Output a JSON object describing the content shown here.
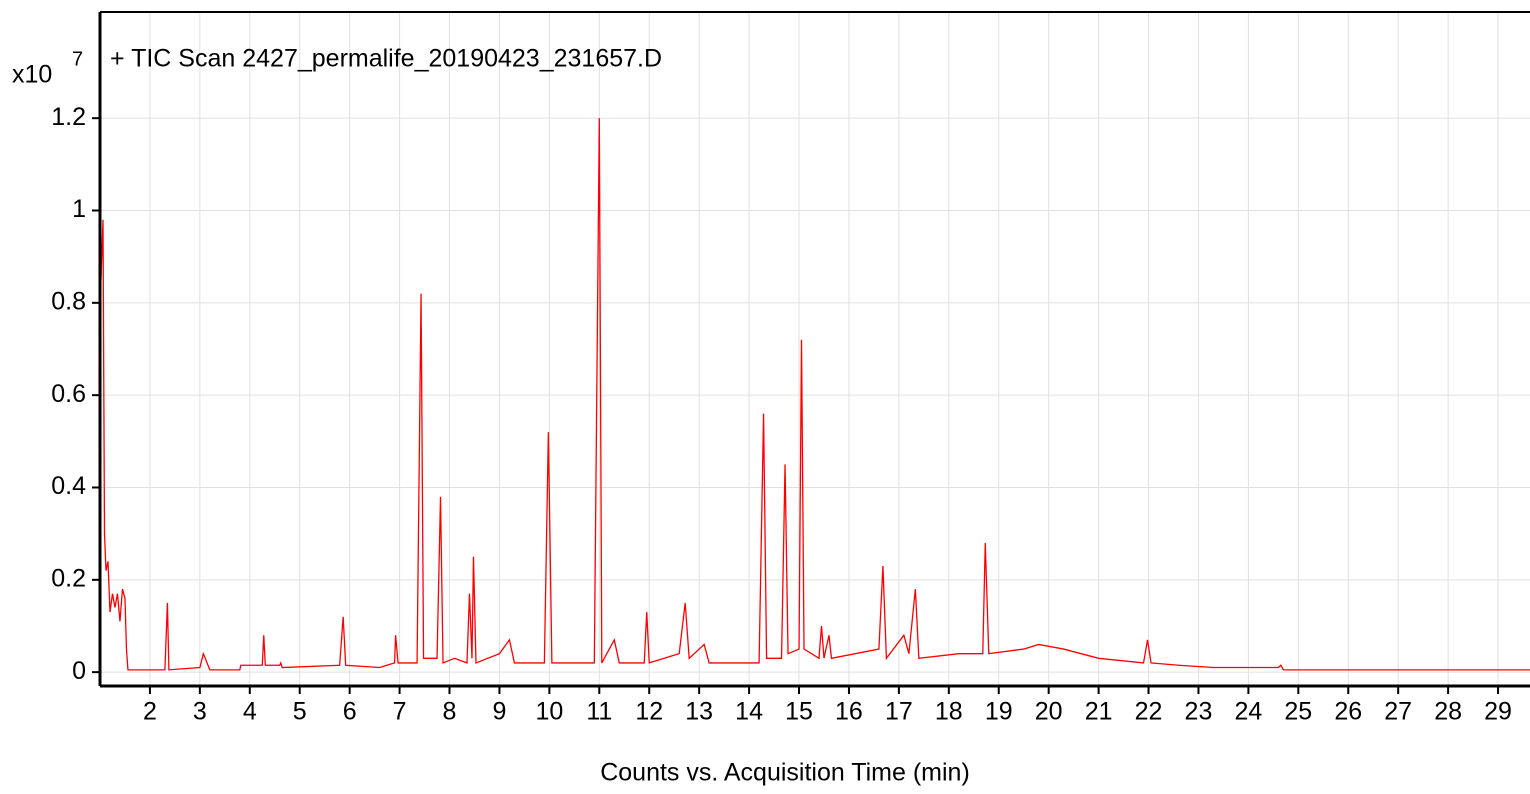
{
  "chart_data": {
    "type": "line",
    "title": "+ TIC Scan 2427_permalife_20190423_231657.D",
    "y_scale_label": "x10",
    "y_scale_exponent": "7",
    "xlabel": "Counts vs. Acquisition Time (min)",
    "xlim": [
      1.0,
      29.64
    ],
    "ylim": [
      -0.03,
      1.43
    ],
    "xticks": [
      2,
      3,
      4,
      5,
      6,
      7,
      8,
      9,
      10,
      11,
      12,
      13,
      14,
      15,
      16,
      17,
      18,
      19,
      20,
      21,
      22,
      23,
      24,
      25,
      26,
      27,
      28,
      29
    ],
    "yticks": [
      0,
      0.2,
      0.4,
      0.6,
      0.8,
      1,
      1.2
    ],
    "grid": true,
    "x": [
      1.02,
      1.06,
      1.09,
      1.12,
      1.16,
      1.2,
      1.25,
      1.3,
      1.35,
      1.4,
      1.45,
      1.5,
      1.53,
      1.56,
      2.3,
      2.35,
      2.38,
      3.0,
      3.07,
      3.2,
      3.8,
      3.82,
      4.25,
      4.28,
      4.31,
      4.6,
      4.62,
      4.65,
      5.8,
      5.87,
      5.92,
      6.6,
      6.9,
      6.92,
      6.97,
      7.35,
      7.43,
      7.48,
      7.75,
      7.82,
      7.87,
      8.1,
      8.35,
      8.4,
      8.45,
      8.48,
      8.53,
      9.0,
      9.2,
      9.3,
      9.9,
      9.98,
      10.05,
      10.9,
      11.0,
      11.05,
      11.3,
      11.4,
      11.9,
      11.95,
      12.0,
      12.6,
      12.72,
      12.8,
      13.1,
      13.2,
      14.2,
      14.29,
      14.35,
      14.65,
      14.72,
      14.78,
      15.0,
      15.05,
      15.1,
      15.4,
      15.45,
      15.5,
      15.6,
      15.65,
      16.6,
      16.68,
      16.75,
      17.1,
      17.2,
      17.33,
      17.4,
      18.2,
      18.68,
      18.73,
      18.8,
      19.5,
      19.8,
      20.3,
      21.0,
      21.9,
      21.98,
      22.05,
      22.6,
      23.3,
      24.6,
      24.65,
      24.7,
      28.3,
      29.64
    ],
    "series": [
      {
        "name": "TIC",
        "color": "#ff0000",
        "values": [
          0.85,
          0.98,
          0.3,
          0.22,
          0.24,
          0.13,
          0.17,
          0.14,
          0.17,
          0.11,
          0.18,
          0.16,
          0.05,
          0.005,
          0.005,
          0.15,
          0.005,
          0.01,
          0.04,
          0.005,
          0.005,
          0.015,
          0.015,
          0.08,
          0.015,
          0.015,
          0.02,
          0.01,
          0.015,
          0.12,
          0.015,
          0.01,
          0.02,
          0.08,
          0.02,
          0.02,
          0.82,
          0.03,
          0.03,
          0.38,
          0.02,
          0.03,
          0.02,
          0.17,
          0.03,
          0.25,
          0.02,
          0.04,
          0.07,
          0.02,
          0.02,
          0.52,
          0.02,
          0.02,
          1.2,
          0.02,
          0.07,
          0.02,
          0.02,
          0.13,
          0.02,
          0.04,
          0.15,
          0.03,
          0.06,
          0.02,
          0.02,
          0.56,
          0.03,
          0.03,
          0.45,
          0.04,
          0.05,
          0.72,
          0.05,
          0.03,
          0.1,
          0.03,
          0.08,
          0.03,
          0.05,
          0.23,
          0.03,
          0.08,
          0.04,
          0.18,
          0.03,
          0.04,
          0.04,
          0.28,
          0.04,
          0.05,
          0.06,
          0.05,
          0.03,
          0.02,
          0.07,
          0.02,
          0.015,
          0.01,
          0.01,
          0.015,
          0.005,
          0.005,
          0.005
        ]
      }
    ]
  }
}
